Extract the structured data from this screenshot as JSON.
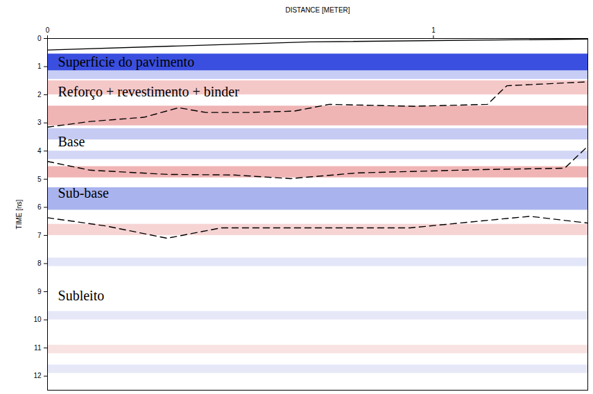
{
  "chart_data": {
    "type": "radargram",
    "x_label": "DISTANCE [METER]",
    "y_label": "TIME [ns]",
    "xlim": [
      0,
      1.4
    ],
    "xticks": [
      0,
      1
    ],
    "ylim": [
      0,
      12.5
    ],
    "yticks": [
      0,
      1,
      2,
      3,
      4,
      5,
      6,
      7,
      8,
      9,
      10,
      11,
      12
    ],
    "reflections": [
      {
        "t0": 0.55,
        "t1": 1.15,
        "color": "#3a4fe0"
      },
      {
        "t0": 1.15,
        "t1": 1.45,
        "color": "#c8cdf5"
      },
      {
        "t0": 1.5,
        "t1": 2.0,
        "color": "#f5c8c8"
      },
      {
        "t0": 2.4,
        "t1": 3.1,
        "color": "#efb4b4"
      },
      {
        "t0": 3.2,
        "t1": 3.6,
        "color": "#c5cbf2"
      },
      {
        "t0": 4.0,
        "t1": 4.3,
        "color": "#d3d7f5"
      },
      {
        "t0": 4.55,
        "t1": 4.95,
        "color": "#f0b4b4"
      },
      {
        "t0": 5.3,
        "t1": 6.1,
        "color": "#a9b3ee"
      },
      {
        "t0": 6.6,
        "t1": 7.0,
        "color": "#f6d4d4"
      },
      {
        "t0": 7.8,
        "t1": 8.1,
        "color": "#e3e6f8"
      },
      {
        "t0": 9.7,
        "t1": 10.0,
        "color": "#e6e8f8"
      },
      {
        "t0": 10.9,
        "t1": 11.2,
        "color": "#f9e2e2"
      },
      {
        "t0": 11.6,
        "t1": 11.9,
        "color": "#e6e8f8"
      }
    ],
    "interfaces": [
      {
        "line_style": "solid",
        "color": "#000000",
        "x": [
          0,
          0.68,
          1.4
        ],
        "y": [
          0.41,
          0.12,
          0.02
        ]
      },
      {
        "line_style": "dashed",
        "color": "#000000",
        "x": [
          0,
          0.11,
          0.25,
          0.34,
          0.41,
          0.52,
          0.64,
          0.73,
          0.95,
          1.14,
          1.19,
          1.4
        ],
        "y": [
          3.15,
          2.95,
          2.8,
          2.46,
          2.63,
          2.63,
          2.58,
          2.34,
          2.41,
          2.34,
          1.68,
          1.54
        ]
      },
      {
        "line_style": "dashed",
        "color": "#000000",
        "x": [
          0,
          0.11,
          0.31,
          0.48,
          0.63,
          0.8,
          1.12,
          1.34,
          1.4
        ],
        "y": [
          4.37,
          4.68,
          4.83,
          4.85,
          4.98,
          4.78,
          4.66,
          4.61,
          3.83
        ]
      },
      {
        "line_style": "dashed",
        "color": "#000000",
        "x": [
          0,
          0.15,
          0.31,
          0.45,
          0.94,
          1.12,
          1.25,
          1.4
        ],
        "y": [
          6.37,
          6.66,
          7.1,
          6.73,
          6.73,
          6.49,
          6.32,
          6.56
        ]
      }
    ],
    "annotations": [
      {
        "text": "Superficie do pavimento",
        "x": 0.027,
        "y": 0.85
      },
      {
        "text": "Reforço + revestimento + binder",
        "x": 0.027,
        "y": 1.9
      },
      {
        "text": "Base",
        "x": 0.027,
        "y": 3.68
      },
      {
        "text": "Sub-base",
        "x": 0.027,
        "y": 5.5
      },
      {
        "text": "Subleito",
        "x": 0.027,
        "y": 9.15
      }
    ]
  }
}
